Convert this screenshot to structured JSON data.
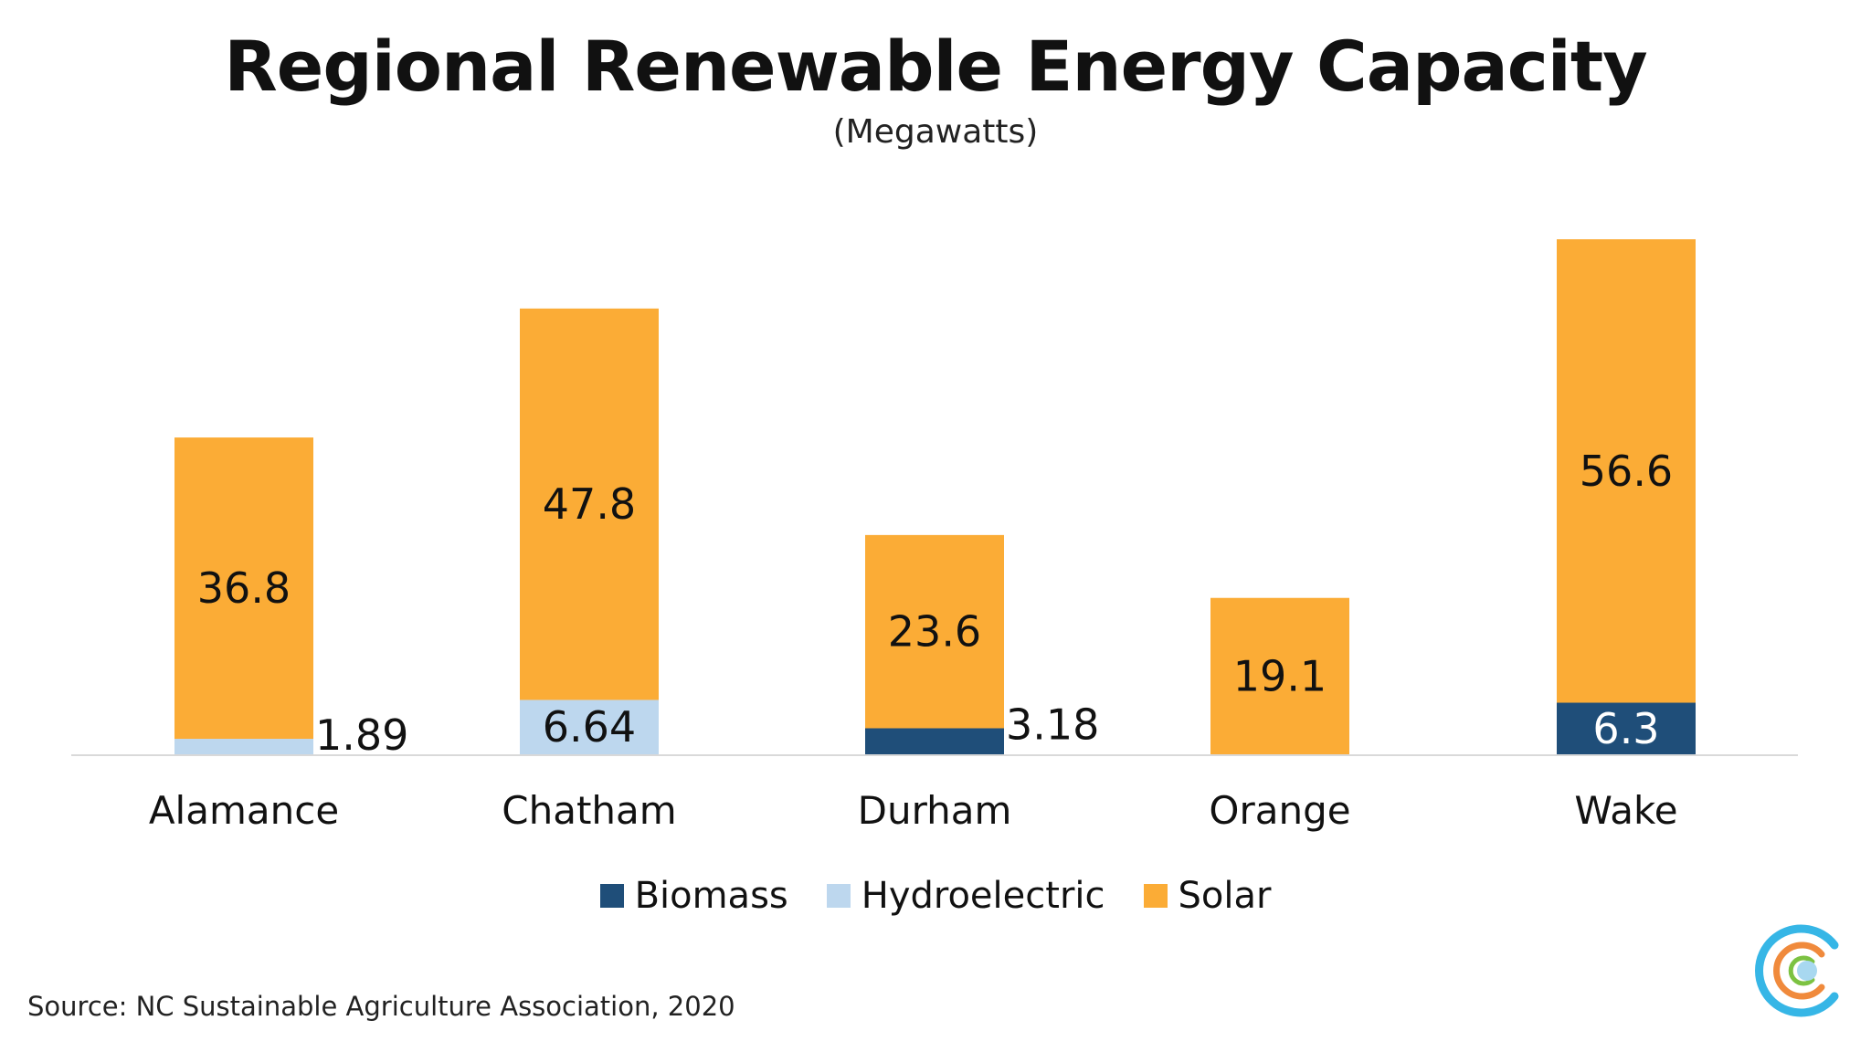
{
  "chart_data": {
    "type": "bar",
    "stacked": true,
    "title": "Regional Renewable Energy Capacity",
    "subtitle": "(Megawatts)",
    "categories": [
      "Alamance",
      "Chatham",
      "Durham",
      "Orange",
      "Wake"
    ],
    "series": [
      {
        "name": "Biomass",
        "color": "#1f4e79",
        "values": [
          0,
          0,
          3.18,
          0,
          6.3
        ]
      },
      {
        "name": "Hydroelectric",
        "color": "#bdd7ee",
        "values": [
          1.89,
          6.64,
          0,
          0,
          0
        ]
      },
      {
        "name": "Solar",
        "color": "#fbac36",
        "values": [
          36.8,
          47.8,
          23.6,
          19.1,
          56.6
        ]
      }
    ],
    "data_labels": [
      {
        "category": "Alamance",
        "series": "Solar",
        "text": "36.8"
      },
      {
        "category": "Alamance",
        "series": "Hydroelectric",
        "text": "1.89"
      },
      {
        "category": "Chatham",
        "series": "Solar",
        "text": "47.8"
      },
      {
        "category": "Chatham",
        "series": "Hydroelectric",
        "text": "6.64"
      },
      {
        "category": "Durham",
        "series": "Solar",
        "text": "23.6"
      },
      {
        "category": "Durham",
        "series": "Biomass",
        "text": "3.18"
      },
      {
        "category": "Orange",
        "series": "Solar",
        "text": "19.1"
      },
      {
        "category": "Wake",
        "series": "Solar",
        "text": "56.6"
      },
      {
        "category": "Wake",
        "series": "Biomass",
        "text": "6.3"
      }
    ],
    "ylim": [
      0,
      65
    ],
    "grid": false,
    "legend_position": "bottom"
  },
  "source": "Source: NC Sustainable Agriculture Association, 2020",
  "logo_icon": "concentric-c-logo-icon"
}
